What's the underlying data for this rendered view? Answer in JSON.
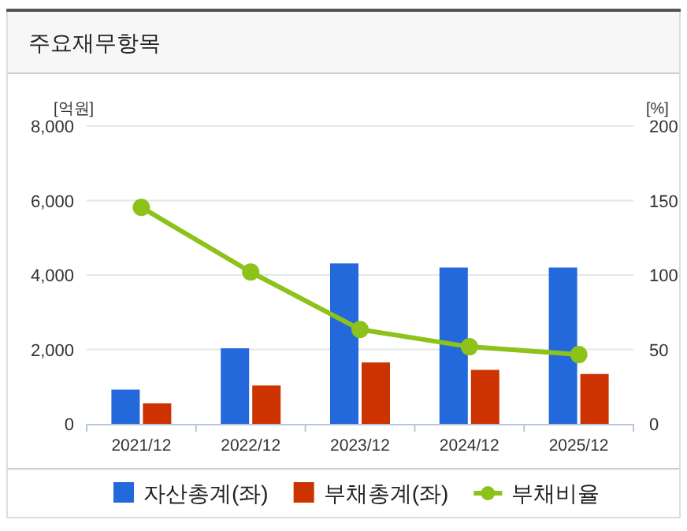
{
  "chart_data": {
    "type": "bar",
    "title": "주요재무항목",
    "ylabel": "[억원]",
    "y2label": "[%]",
    "categories": [
      "2021/12",
      "2022/12",
      "2023/12",
      "2024/12",
      "2025/12"
    ],
    "series": [
      {
        "name": "자산총계(좌)",
        "color": "#2369dc",
        "values": [
          920,
          2030,
          4310,
          4200,
          4200
        ]
      },
      {
        "name": "부채총계(좌)",
        "color": "#cc3300",
        "values": [
          550,
          1030,
          1650,
          1450,
          1340
        ]
      },
      {
        "name": "부채비율",
        "type": "line",
        "axis": "y2",
        "marker": "circle",
        "color": "#8cc21a",
        "values": [
          145.4,
          102,
          63.4,
          51.8,
          46.5
        ]
      }
    ],
    "ylim": [
      0,
      8000
    ],
    "yticks": [
      0,
      {
        "value": 2000,
        "label": "2,000"
      },
      {
        "value": 4000,
        "label": "4,000"
      },
      {
        "value": 6000,
        "label": "6,000"
      },
      {
        "value": 8000,
        "label": "8,000"
      }
    ],
    "y2lim": [
      0,
      200
    ],
    "y2ticks": [
      0,
      50,
      100,
      150,
      200
    ],
    "grid": "y",
    "legend": "bottom"
  }
}
